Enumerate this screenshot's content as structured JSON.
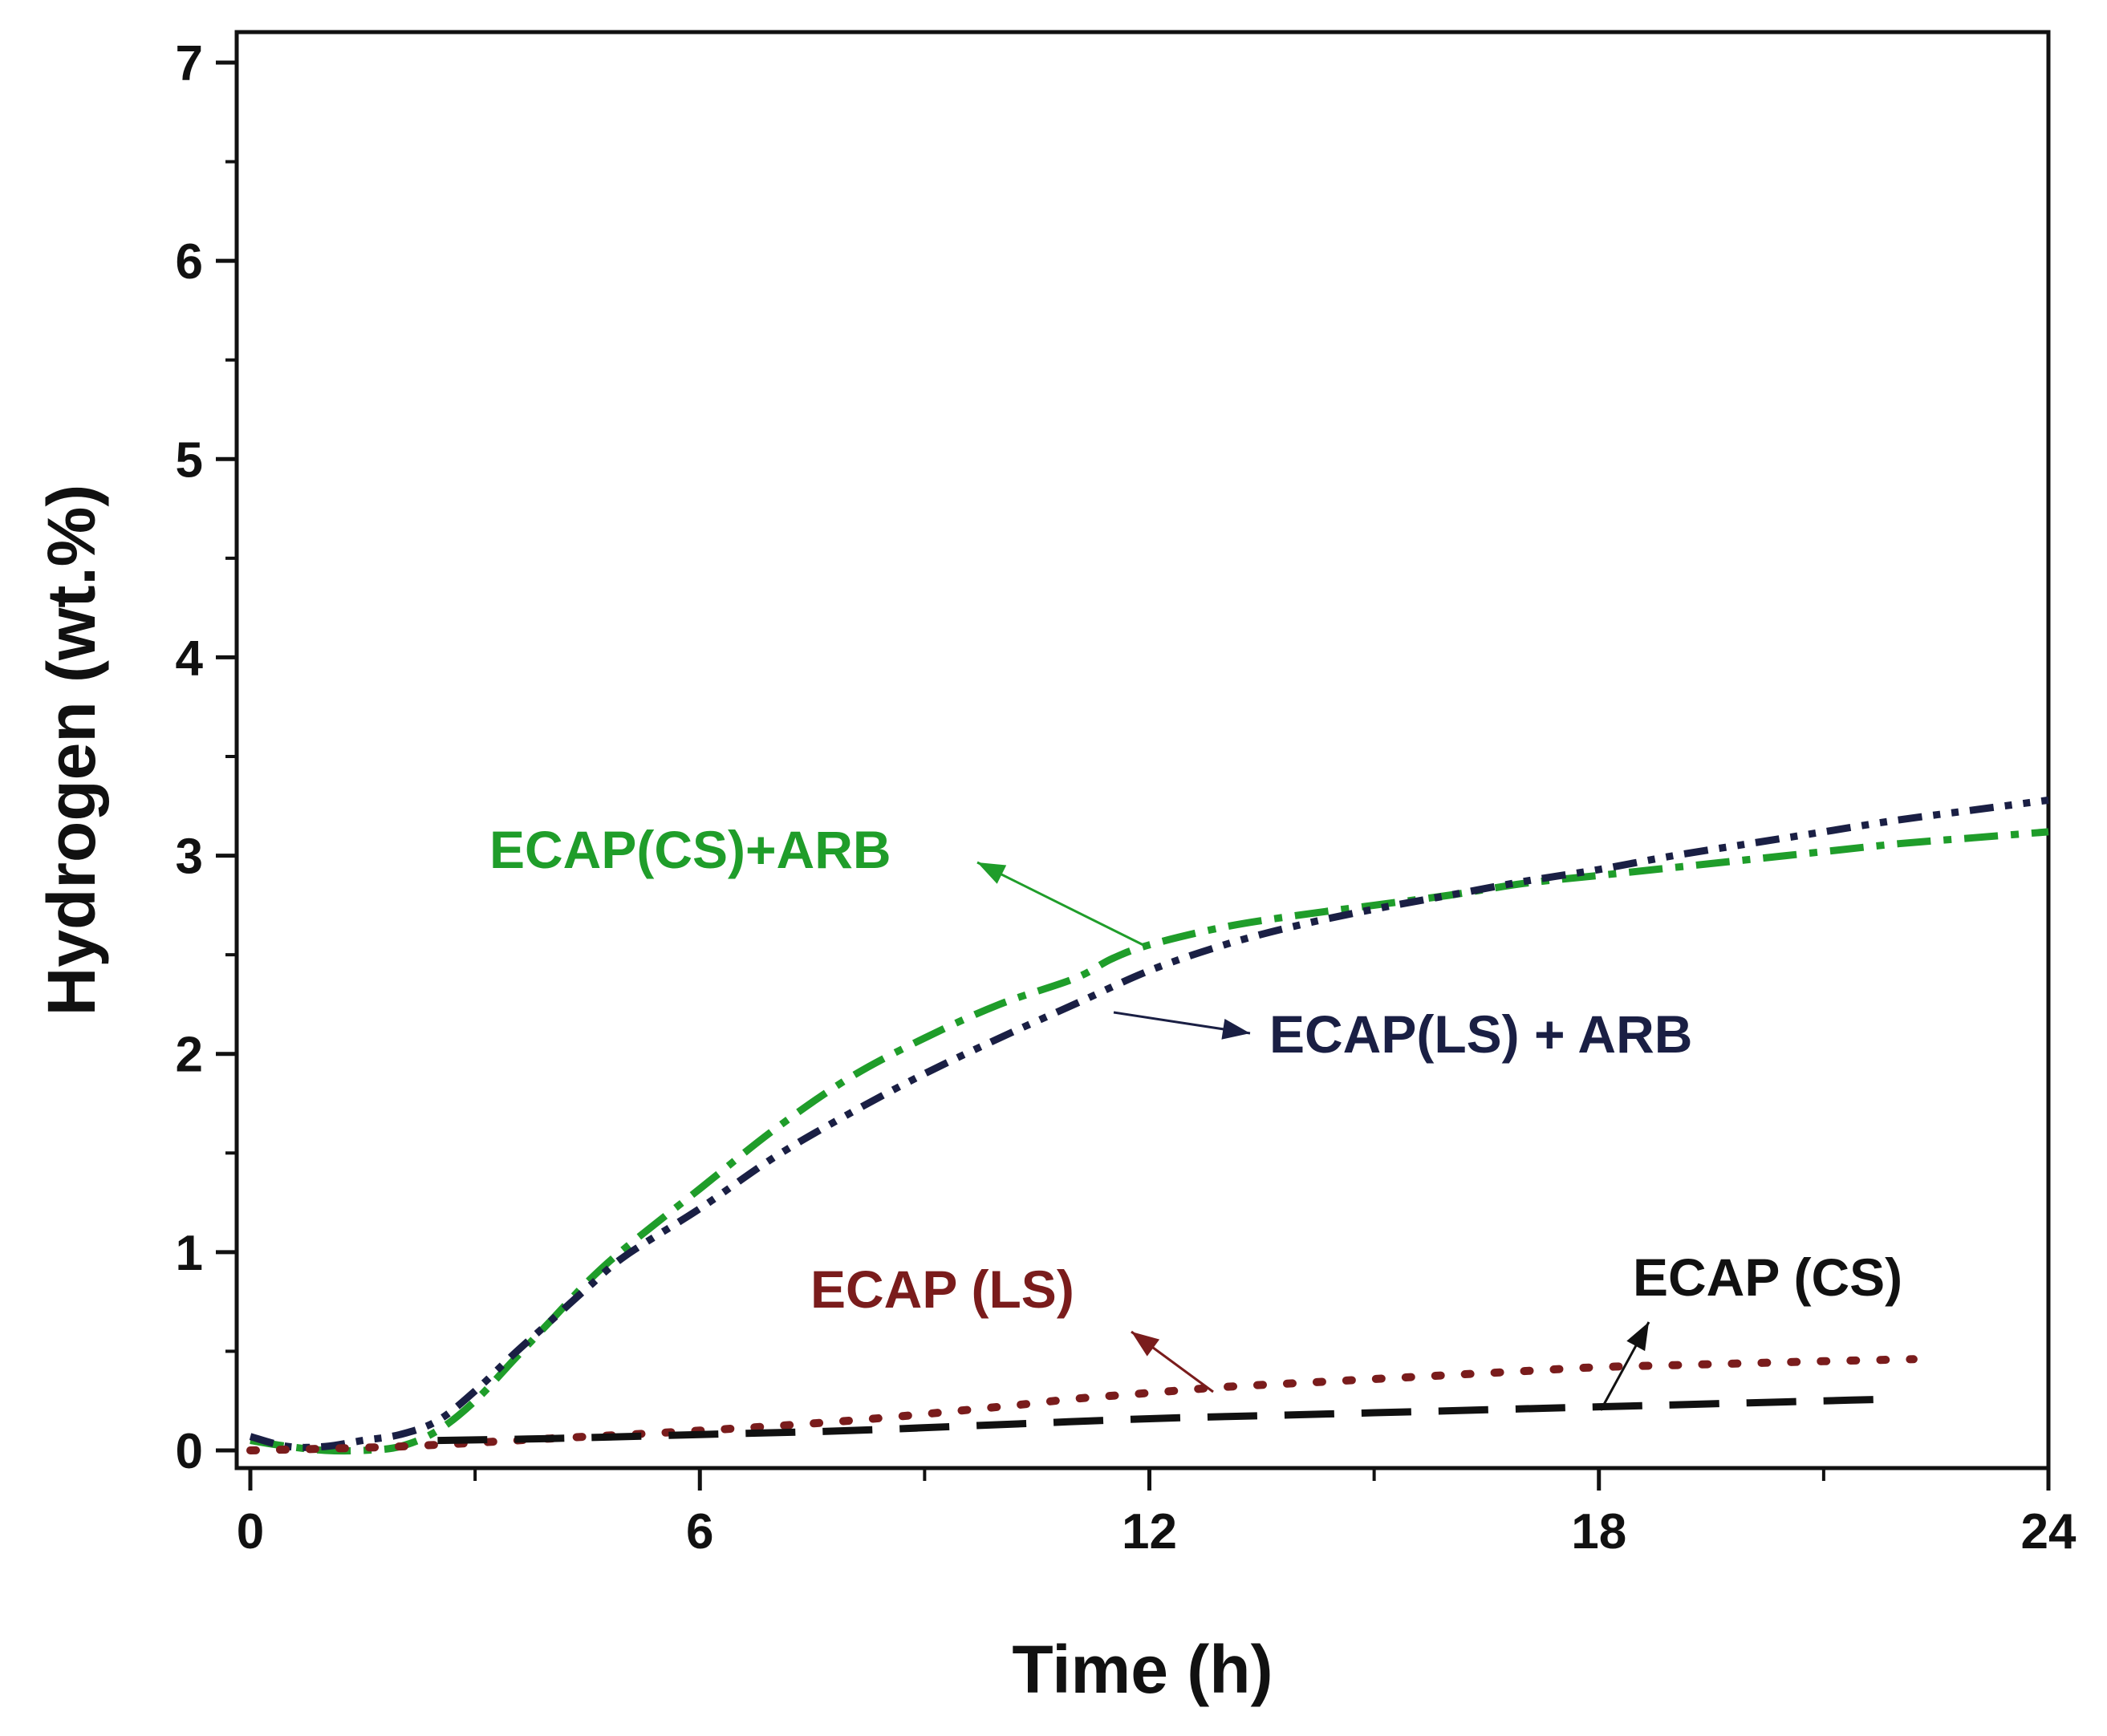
{
  "chart_data": {
    "type": "line",
    "xlabel": "Time (h)",
    "ylabel": "Hydrogen (wt.%)",
    "xlim": [
      0,
      24
    ],
    "ylim": [
      0,
      7
    ],
    "xticks": [
      0,
      6,
      12,
      18,
      24
    ],
    "yticks": [
      0,
      1,
      2,
      3,
      4,
      5,
      6,
      7
    ],
    "grid": false,
    "legend": "inline labels with arrows",
    "series": [
      {
        "name": "ECAP(CS)+ARB",
        "color": "#1f9d2a",
        "dash": "dash-dot",
        "x": [
          0,
          0.5,
          1,
          1.5,
          2,
          2.5,
          3,
          3.5,
          4,
          4.5,
          5,
          6,
          7,
          8,
          9,
          10,
          11,
          11.5,
          12,
          13,
          14,
          15,
          16,
          17,
          18,
          19,
          20,
          21,
          22,
          23,
          24
        ],
        "y": [
          0.05,
          0.02,
          0,
          0,
          0.02,
          0.1,
          0.25,
          0.45,
          0.65,
          0.85,
          1.02,
          1.32,
          1.62,
          1.88,
          2.08,
          2.25,
          2.38,
          2.48,
          2.55,
          2.64,
          2.7,
          2.75,
          2.8,
          2.86,
          2.9,
          2.94,
          2.98,
          3.02,
          3.06,
          3.09,
          3.12
        ]
      },
      {
        "name": "ECAP(LS) + ARB",
        "color": "#1a1f44",
        "dash": "dash-dot-dot",
        "x": [
          0,
          0.5,
          1,
          1.5,
          2,
          2.5,
          3,
          3.5,
          4,
          4.5,
          5,
          6,
          7,
          8,
          9,
          10,
          11,
          12,
          13,
          14,
          15,
          16,
          17,
          18,
          19,
          20,
          21,
          22,
          23,
          24
        ],
        "y": [
          0.07,
          0.02,
          0.02,
          0.05,
          0.08,
          0.15,
          0.3,
          0.48,
          0.65,
          0.82,
          0.98,
          1.22,
          1.48,
          1.7,
          1.9,
          2.08,
          2.25,
          2.42,
          2.55,
          2.65,
          2.73,
          2.8,
          2.87,
          2.93,
          3.0,
          3.06,
          3.12,
          3.18,
          3.23,
          3.28
        ]
      },
      {
        "name": "ECAP (LS)",
        "color": "#7a1c1c",
        "dash": "dotted",
        "x": [
          0,
          2,
          4,
          6,
          8,
          10,
          11,
          12,
          13,
          14,
          15,
          16,
          17,
          18,
          19,
          20,
          21,
          22.2
        ],
        "y": [
          0.0,
          0.02,
          0.06,
          0.1,
          0.15,
          0.22,
          0.26,
          0.29,
          0.32,
          0.34,
          0.36,
          0.38,
          0.4,
          0.42,
          0.43,
          0.44,
          0.45,
          0.46
        ]
      },
      {
        "name": "ECAP (CS)",
        "color": "#111111",
        "dash": "dashed",
        "x": [
          2.5,
          4,
          6,
          8,
          10,
          12,
          14,
          16,
          18,
          19,
          20,
          21,
          22
        ],
        "y": [
          0.05,
          0.06,
          0.08,
          0.1,
          0.13,
          0.16,
          0.18,
          0.2,
          0.22,
          0.23,
          0.24,
          0.25,
          0.26
        ]
      }
    ]
  }
}
